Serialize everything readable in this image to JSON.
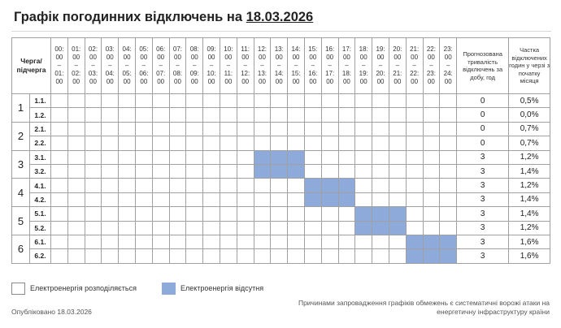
{
  "header": {
    "title_prefix": "Графік погодинних відключень на ",
    "title_date": "18.03.2026"
  },
  "table": {
    "queue_header": "Черга/ підчерга",
    "hours": [
      {
        "from": "00:",
        "fromb": "00",
        "to": "01:",
        "tob": "00"
      },
      {
        "from": "01:",
        "fromb": "00",
        "to": "02:",
        "tob": "00"
      },
      {
        "from": "02:",
        "fromb": "00",
        "to": "03:",
        "tob": "00"
      },
      {
        "from": "03:",
        "fromb": "00",
        "to": "04:",
        "tob": "00"
      },
      {
        "from": "04:",
        "fromb": "00",
        "to": "05:",
        "tob": "00"
      },
      {
        "from": "05:",
        "fromb": "00",
        "to": "06:",
        "tob": "00"
      },
      {
        "from": "06:",
        "fromb": "00",
        "to": "07:",
        "tob": "00"
      },
      {
        "from": "07:",
        "fromb": "00",
        "to": "08:",
        "tob": "00"
      },
      {
        "from": "08:",
        "fromb": "00",
        "to": "09:",
        "tob": "00"
      },
      {
        "from": "09:",
        "fromb": "00",
        "to": "10:",
        "tob": "00"
      },
      {
        "from": "10:",
        "fromb": "00",
        "to": "11:",
        "tob": "00"
      },
      {
        "from": "11:",
        "fromb": "00",
        "to": "12:",
        "tob": "00"
      },
      {
        "from": "12:",
        "fromb": "00",
        "to": "13:",
        "tob": "00"
      },
      {
        "from": "13:",
        "fromb": "00",
        "to": "14:",
        "tob": "00"
      },
      {
        "from": "14:",
        "fromb": "00",
        "to": "15:",
        "tob": "00"
      },
      {
        "from": "15:",
        "fromb": "00",
        "to": "16:",
        "tob": "00"
      },
      {
        "from": "16:",
        "fromb": "00",
        "to": "17:",
        "tob": "00"
      },
      {
        "from": "17:",
        "fromb": "00",
        "to": "18:",
        "tob": "00"
      },
      {
        "from": "18:",
        "fromb": "00",
        "to": "19:",
        "tob": "00"
      },
      {
        "from": "19:",
        "fromb": "00",
        "to": "20:",
        "tob": "00"
      },
      {
        "from": "20:",
        "fromb": "00",
        "to": "21:",
        "tob": "00"
      },
      {
        "from": "21:",
        "fromb": "00",
        "to": "22:",
        "tob": "00"
      },
      {
        "from": "22:",
        "fromb": "00",
        "to": "23:",
        "tob": "00"
      },
      {
        "from": "23:",
        "fromb": "00",
        "to": "24:",
        "tob": "00"
      }
    ],
    "dash": "–",
    "duration_header": "Прогнозована тривалість відключень за добу, год",
    "share_header": "Частка відключених годин у черзі з початку місяця",
    "queues": [
      {
        "number": "1",
        "subqueues": [
          {
            "label": "1.1.",
            "duration": "0",
            "share": "0,5%",
            "off_hours": []
          },
          {
            "label": "1.2.",
            "duration": "0",
            "share": "0,0%",
            "off_hours": []
          }
        ]
      },
      {
        "number": "2",
        "subqueues": [
          {
            "label": "2.1.",
            "duration": "0",
            "share": "0,7%",
            "off_hours": []
          },
          {
            "label": "2.2.",
            "duration": "0",
            "share": "0,7%",
            "off_hours": []
          }
        ]
      },
      {
        "number": "3",
        "subqueues": [
          {
            "label": "3.1.",
            "duration": "3",
            "share": "1,2%",
            "off_hours": [
              12,
              13,
              14
            ]
          },
          {
            "label": "3.2.",
            "duration": "3",
            "share": "1,4%",
            "off_hours": [
              12,
              13,
              14
            ]
          }
        ]
      },
      {
        "number": "4",
        "subqueues": [
          {
            "label": "4.1.",
            "duration": "3",
            "share": "1,2%",
            "off_hours": [
              15,
              16,
              17
            ]
          },
          {
            "label": "4.2.",
            "duration": "3",
            "share": "1,4%",
            "off_hours": [
              15,
              16,
              17
            ]
          }
        ]
      },
      {
        "number": "5",
        "subqueues": [
          {
            "label": "5.1.",
            "duration": "3",
            "share": "1,4%",
            "off_hours": [
              18,
              19,
              20
            ]
          },
          {
            "label": "5.2.",
            "duration": "3",
            "share": "1,2%",
            "off_hours": [
              18,
              19,
              20
            ]
          }
        ]
      },
      {
        "number": "6",
        "subqueues": [
          {
            "label": "6.1.",
            "duration": "3",
            "share": "1,6%",
            "off_hours": [
              21,
              22,
              23
            ]
          },
          {
            "label": "6.2.",
            "duration": "3",
            "share": "1,6%",
            "off_hours": [
              21,
              22,
              23
            ]
          }
        ]
      }
    ]
  },
  "legend": {
    "on_label": "Електроенергія розподіляється",
    "off_label": "Електроенергія відсутня",
    "off_color": "#8eaadb",
    "on_color": "#ffffff"
  },
  "footer": {
    "published": "Опубліковано 18.03.2026",
    "note": "Причинами запровадження графіків обмежень є систематичні ворожі атаки на енергетичну інфраструктуру країни"
  }
}
